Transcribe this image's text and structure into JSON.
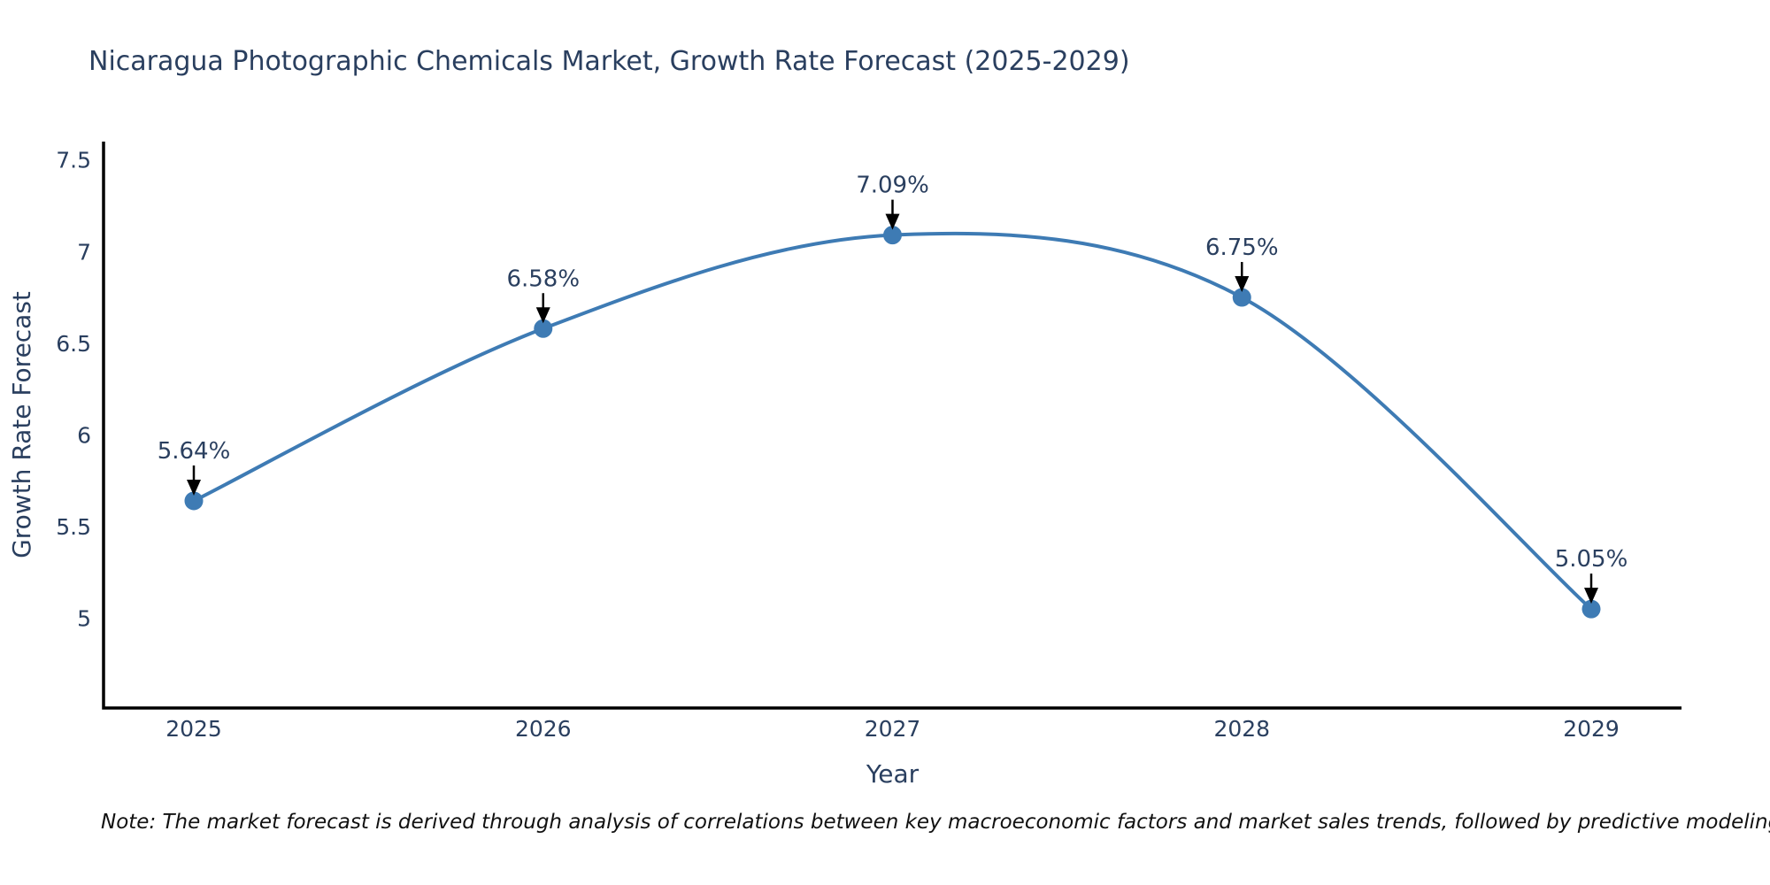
{
  "title": "Nicaragua Photographic Chemicals Market, Growth Rate Forecast (2025-2029)",
  "note": "Note: The market forecast is derived through analysis of correlations between key macroeconomic factors and market sales trends, followed by predictive modeling to project future sales",
  "colors": {
    "line": "#3e7bb4",
    "marker": "#3e7bb4",
    "axis": "#000000",
    "arrow": "#000000",
    "tick_text": "#2a3f5f",
    "annotation_text": "#2a3f5f",
    "axis_title_text": "#2a3f5f",
    "title_text": "#2a3f5f",
    "note_text": "#111111",
    "background": "#ffffff"
  },
  "chart_data": {
    "type": "line",
    "title": "Nicaragua Photographic Chemicals Market, Growth Rate Forecast (2025-2029)",
    "xlabel": "Year",
    "ylabel": "Growth Rate Forecast",
    "categories": [
      "2025",
      "2026",
      "2027",
      "2028",
      "2029"
    ],
    "values": [
      5.64,
      6.58,
      7.09,
      6.75,
      5.05
    ],
    "point_labels": [
      "5.64%",
      "6.58%",
      "7.09%",
      "6.75%",
      "5.05%"
    ],
    "ytick_values": [
      5,
      5.5,
      6,
      6.5,
      7,
      7.5
    ],
    "ytick_labels": [
      "5",
      "5.5",
      "6",
      "6.5",
      "7",
      "7.5"
    ],
    "ylim": [
      4.51,
      7.6
    ],
    "line_shape": "spline",
    "grid": false,
    "legend": "none",
    "annotations_have_arrows": true
  }
}
